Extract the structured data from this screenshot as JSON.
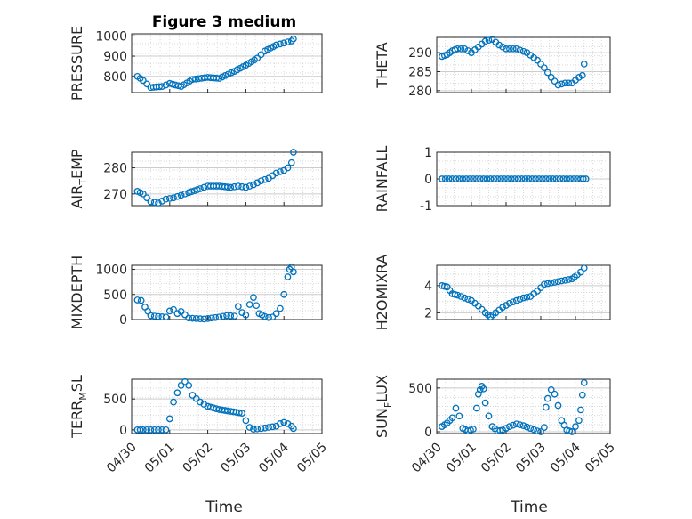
{
  "title": "Figure 3 medium",
  "colors": {
    "marker": "#0072BD",
    "axis": "#262626",
    "grid": "#d9d9d9",
    "background": "#ffffff"
  },
  "chart_data": [
    {
      "type": "scatter",
      "ylabel": "PRESSURE",
      "ylim": [
        720,
        1010
      ],
      "yticks": [
        800,
        900,
        1000
      ],
      "xlim": [
        "04/30",
        "05/05"
      ],
      "xticks": [
        "04/30",
        "05/01",
        "05/02",
        "05/03",
        "05/04",
        "05/05"
      ],
      "grid": true,
      "series": [
        {
          "x": [
            0.15,
            0.3,
            0.5,
            0.8,
            1.0,
            1.3,
            1.6,
            2.0,
            2.3,
            2.7,
            3.0,
            3.3,
            3.5,
            3.8,
            4.0,
            4.2,
            4.25
          ],
          "y": [
            800,
            780,
            745,
            750,
            765,
            750,
            785,
            795,
            790,
            825,
            855,
            890,
            925,
            955,
            965,
            975,
            985
          ]
        }
      ]
    },
    {
      "type": "scatter",
      "ylabel": "THETA",
      "ylim": [
        279.5,
        294
      ],
      "yticks": [
        280,
        285,
        290
      ],
      "xlim": [
        "04/30",
        "05/05"
      ],
      "xticks": [
        "04/30",
        "05/01",
        "05/02",
        "05/03",
        "05/04",
        "05/05"
      ],
      "grid": true,
      "series": [
        {
          "x": [
            0.15,
            0.3,
            0.45,
            0.6,
            0.8,
            1.0,
            1.2,
            1.4,
            1.6,
            1.8,
            2.0,
            2.3,
            2.6,
            2.9,
            3.1,
            3.3,
            3.5,
            3.7,
            3.9,
            4.1,
            4.2,
            4.25
          ],
          "y": [
            289,
            289.5,
            290.5,
            291,
            291,
            290,
            291.5,
            293,
            293.5,
            292,
            291,
            291,
            290,
            288,
            286,
            283.5,
            281.5,
            282,
            282,
            283.5,
            284,
            287
          ]
        }
      ]
    },
    {
      "type": "scatter",
      "ylabel": "AIR_TEMP",
      "ylim": [
        265.5,
        286
      ],
      "yticks": [
        270,
        280
      ],
      "xlim": [
        "04/30",
        "05/05"
      ],
      "xticks": [
        "04/30",
        "05/01",
        "05/02",
        "05/03",
        "05/04",
        "05/05"
      ],
      "grid": true,
      "series": [
        {
          "x": [
            0.15,
            0.3,
            0.5,
            0.7,
            0.9,
            1.1,
            1.3,
            1.5,
            1.8,
            2.0,
            2.3,
            2.6,
            2.8,
            3.0,
            3.2,
            3.4,
            3.6,
            3.8,
            4.0,
            4.1,
            4.2,
            4.25
          ],
          "y": [
            271,
            270,
            267,
            266.5,
            268,
            268.5,
            269.5,
            270.5,
            272,
            273,
            273,
            272.5,
            273,
            272.5,
            273.5,
            275,
            276,
            278,
            279,
            280,
            282,
            286
          ]
        }
      ]
    },
    {
      "type": "scatter",
      "ylabel": "RAINFALL",
      "ylim": [
        -1,
        1
      ],
      "yticks": [
        -1,
        0,
        1
      ],
      "xlim": [
        "04/30",
        "05/05"
      ],
      "xticks": [
        "04/30",
        "05/01",
        "05/02",
        "05/03",
        "05/04",
        "05/05"
      ],
      "grid": true,
      "series": [
        {
          "x": [
            0.15,
            0.35,
            0.55,
            0.75,
            0.95,
            1.15,
            1.35,
            1.55,
            1.75,
            1.95,
            2.15,
            2.35,
            2.55,
            2.75,
            2.95,
            3.15,
            3.35,
            3.55,
            3.75,
            3.95,
            4.15,
            4.3
          ],
          "y": [
            0,
            0,
            0,
            0,
            0,
            0,
            0,
            0,
            0,
            0,
            0,
            0,
            0,
            0,
            0,
            0,
            0,
            0,
            0,
            0,
            0,
            0
          ]
        }
      ]
    },
    {
      "type": "scatter",
      "ylabel": "MIXDEPTH",
      "ylim": [
        0,
        1080
      ],
      "yticks": [
        0,
        500,
        1000
      ],
      "xlim": [
        "04/30",
        "05/05"
      ],
      "xticks": [
        "04/30",
        "05/01",
        "05/02",
        "05/03",
        "05/04",
        "05/05"
      ],
      "grid": true,
      "series": [
        {
          "x": [
            0.15,
            0.25,
            0.35,
            0.5,
            0.7,
            0.9,
            1.0,
            1.1,
            1.2,
            1.3,
            1.5,
            1.7,
            1.9,
            2.1,
            2.3,
            2.5,
            2.7,
            2.8,
            2.9,
            3.0,
            3.1,
            3.2,
            3.35,
            3.5,
            3.6,
            3.7,
            3.8,
            3.9,
            4.0,
            4.1,
            4.15,
            4.2,
            4.25
          ],
          "y": [
            390,
            380,
            250,
            80,
            60,
            50,
            170,
            200,
            120,
            160,
            30,
            20,
            10,
            30,
            50,
            80,
            70,
            260,
            140,
            90,
            300,
            440,
            120,
            60,
            40,
            50,
            120,
            220,
            500,
            850,
            1000,
            1050,
            950
          ]
        }
      ]
    },
    {
      "type": "scatter",
      "ylabel": "H2OMIXRA",
      "ylim": [
        1.5,
        5.5
      ],
      "yticks": [
        2,
        4
      ],
      "xlim": [
        "04/30",
        "05/05"
      ],
      "xticks": [
        "04/30",
        "05/01",
        "05/02",
        "05/03",
        "05/04",
        "05/05"
      ],
      "grid": true,
      "series": [
        {
          "x": [
            0.15,
            0.3,
            0.45,
            0.6,
            0.8,
            1.0,
            1.2,
            1.4,
            1.55,
            1.7,
            1.9,
            2.1,
            2.3,
            2.5,
            2.7,
            2.9,
            3.1,
            3.3,
            3.5,
            3.7,
            3.9,
            4.05,
            4.15,
            4.25
          ],
          "y": [
            4.0,
            3.9,
            3.4,
            3.3,
            3.1,
            2.9,
            2.5,
            2.0,
            1.7,
            2.0,
            2.4,
            2.7,
            2.9,
            3.1,
            3.2,
            3.6,
            4.1,
            4.2,
            4.3,
            4.4,
            4.5,
            4.8,
            5.0,
            5.3
          ]
        }
      ]
    },
    {
      "type": "scatter",
      "ylabel": "TERR_MSL",
      "ylim": [
        -60,
        820
      ],
      "yticks": [
        0,
        500
      ],
      "xlim": [
        "04/30",
        "05/05"
      ],
      "xticks": [
        "04/30",
        "05/01",
        "05/02",
        "05/03",
        "05/04",
        "05/05"
      ],
      "grid": true,
      "series": [
        {
          "x": [
            0.15,
            0.3,
            0.5,
            0.7,
            0.9,
            1.0,
            1.1,
            1.2,
            1.3,
            1.4,
            1.5,
            1.6,
            1.8,
            2.0,
            2.3,
            2.6,
            2.9,
            3.0,
            3.1,
            3.2,
            3.4,
            3.6,
            3.8,
            3.9,
            4.0,
            4.1,
            4.2,
            4.25
          ],
          "y": [
            0,
            0,
            0,
            0,
            0,
            180,
            450,
            600,
            720,
            780,
            720,
            560,
            450,
            380,
            330,
            300,
            270,
            150,
            40,
            10,
            20,
            40,
            60,
            100,
            120,
            100,
            60,
            20
          ]
        }
      ]
    },
    {
      "type": "scatter",
      "ylabel": "SUN_FLUX",
      "ylim": [
        -20,
        600
      ],
      "yticks": [
        0,
        500
      ],
      "xlim": [
        "04/30",
        "05/05"
      ],
      "xticks": [
        "04/30",
        "05/01",
        "05/02",
        "05/03",
        "05/04",
        "05/05"
      ],
      "grid": true,
      "series": [
        {
          "x": [
            0.15,
            0.3,
            0.45,
            0.55,
            0.65,
            0.75,
            0.9,
            1.05,
            1.15,
            1.2,
            1.25,
            1.3,
            1.35,
            1.4,
            1.5,
            1.6,
            1.75,
            1.9,
            2.1,
            2.3,
            2.5,
            2.7,
            2.9,
            3.0,
            3.1,
            3.15,
            3.2,
            3.3,
            3.4,
            3.5,
            3.6,
            3.75,
            3.9,
            4.0,
            4.1,
            4.15,
            4.2,
            4.25
          ],
          "y": [
            60,
            100,
            160,
            270,
            180,
            40,
            10,
            30,
            270,
            430,
            480,
            520,
            490,
            330,
            180,
            60,
            10,
            20,
            60,
            90,
            70,
            40,
            10,
            0,
            50,
            280,
            380,
            480,
            430,
            300,
            130,
            20,
            0,
            60,
            130,
            250,
            420,
            560
          ]
        }
      ]
    }
  ]
}
